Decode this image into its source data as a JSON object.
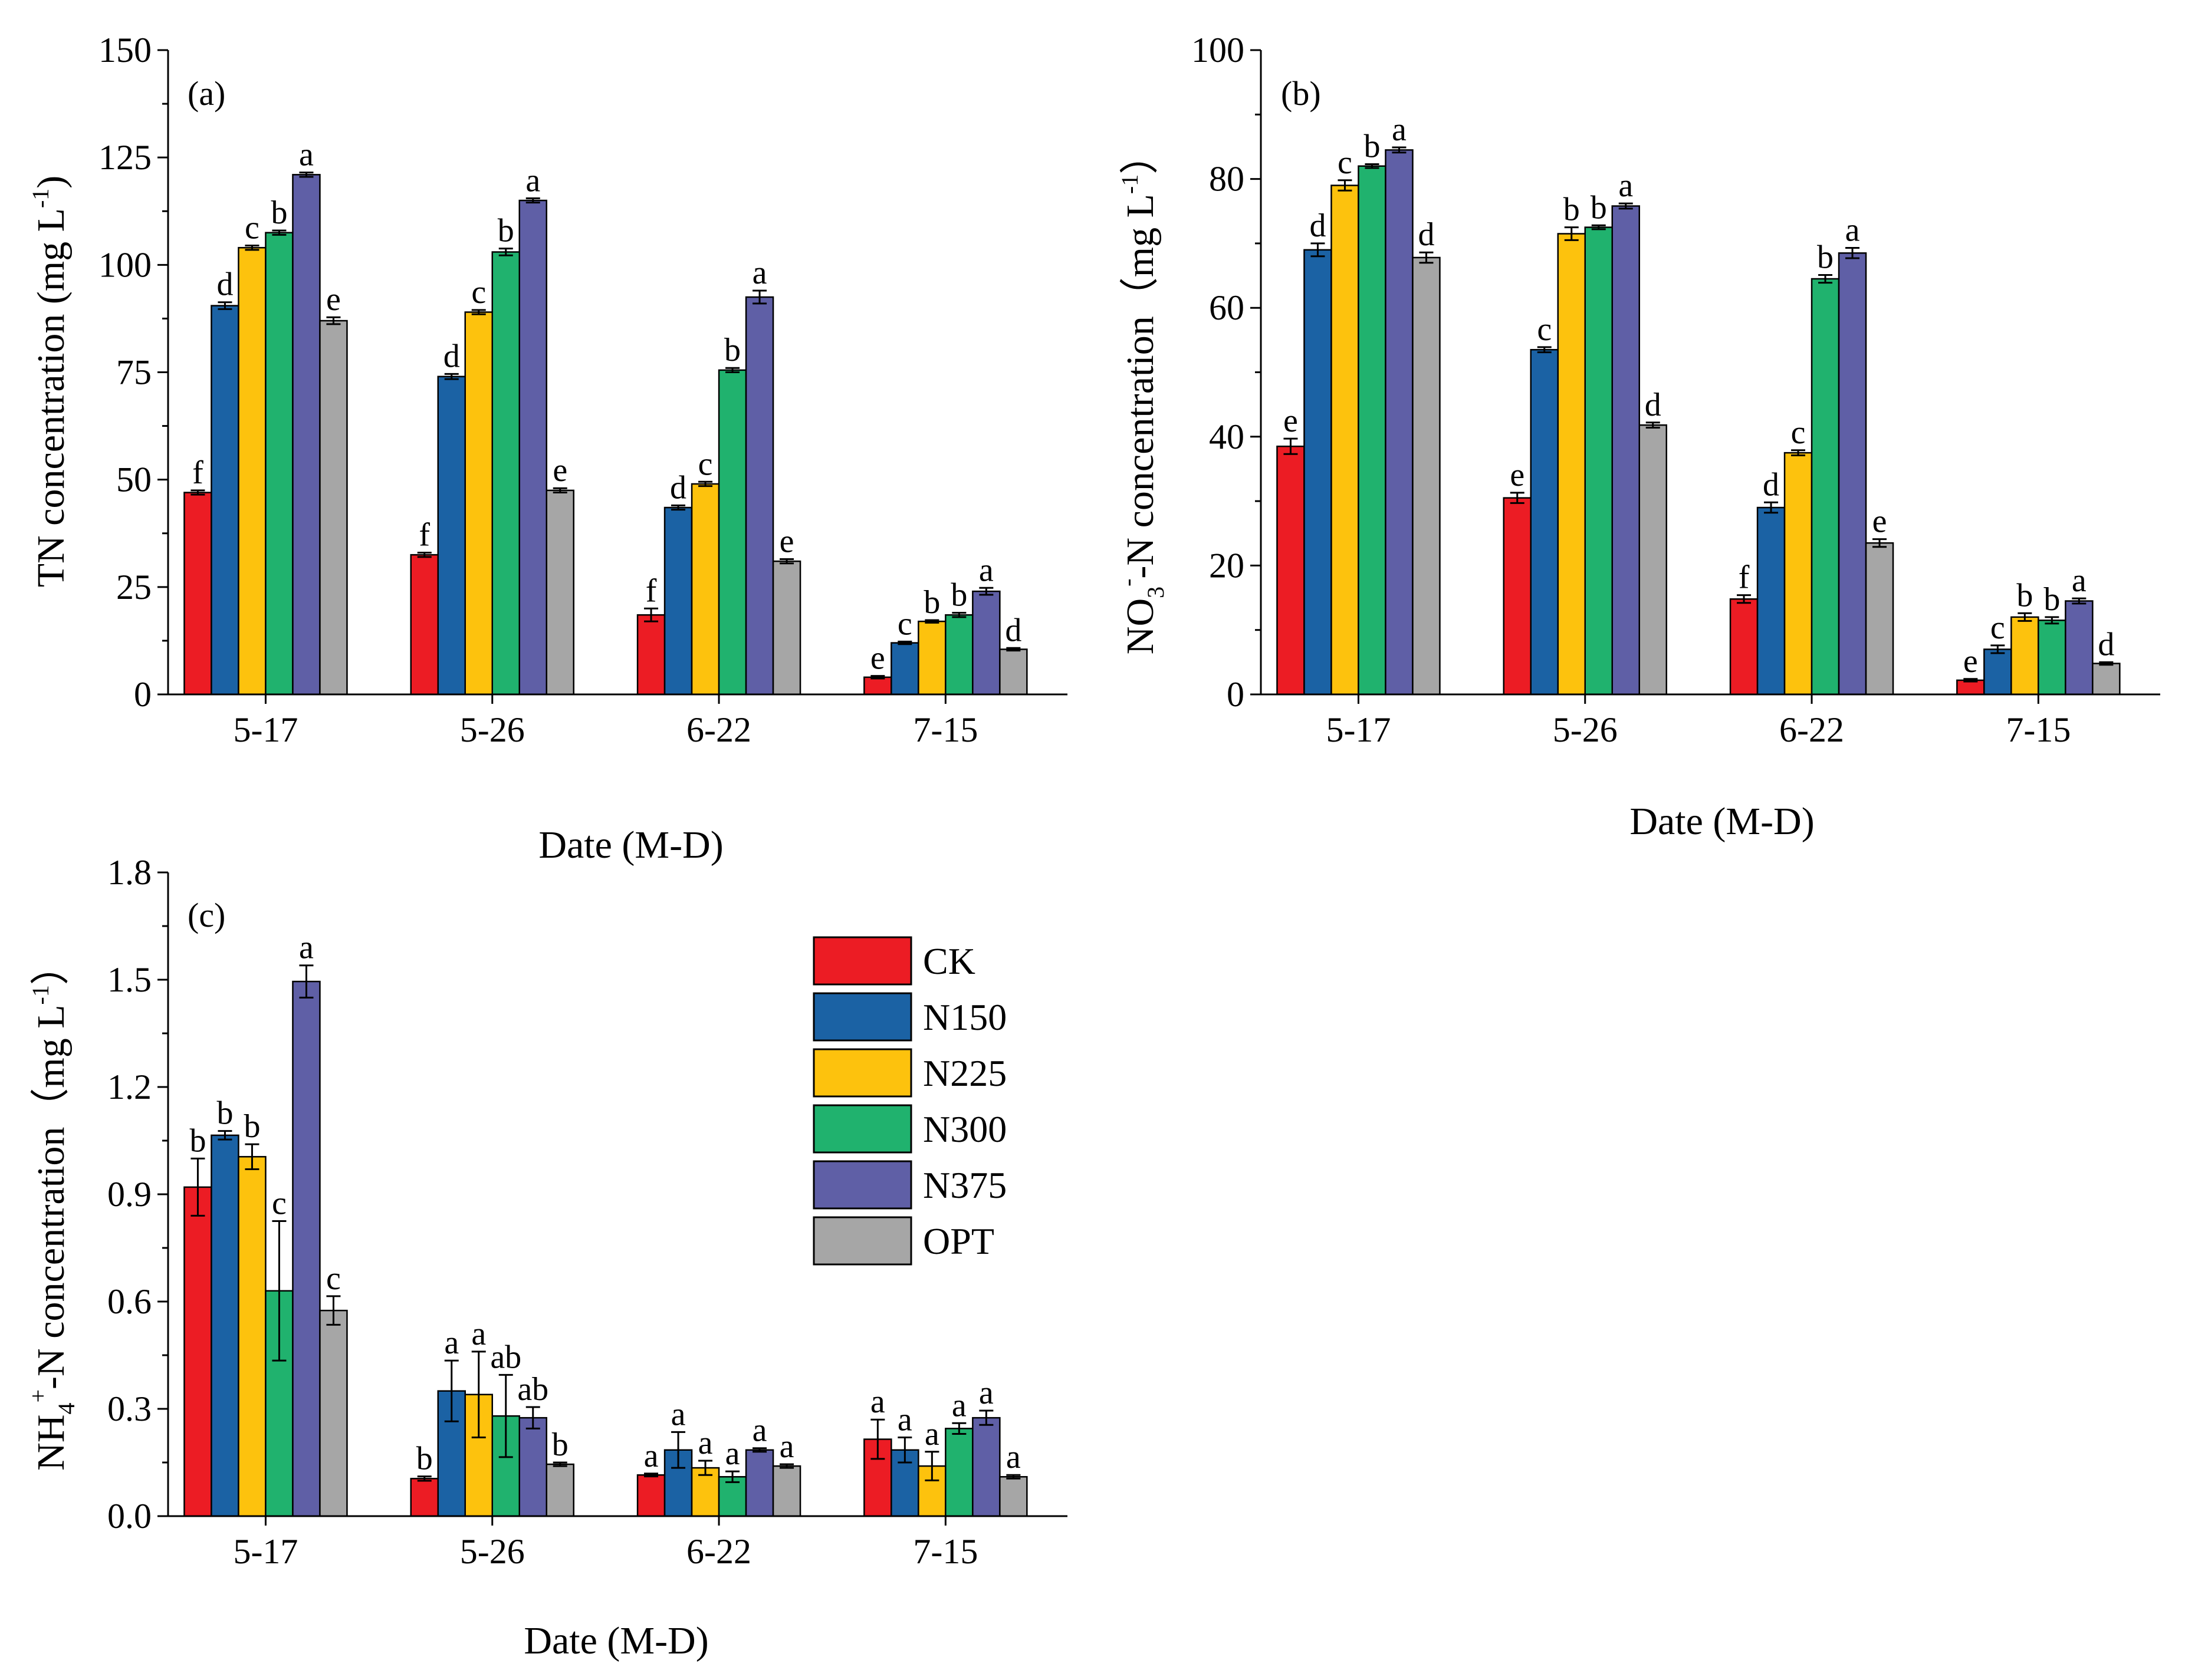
{
  "colors": {
    "CK": "#ec1c24",
    "N150": "#1b62a4",
    "N225": "#fdc20d",
    "N300": "#20b26e",
    "N375": "#5f5fa6",
    "OPT": "#a6a6a6"
  },
  "legend": {
    "entries": [
      "CK",
      "N150",
      "N225",
      "N300",
      "N375",
      "OPT"
    ]
  },
  "chart_data": [
    {
      "type": "bar",
      "panel_label": "(a)",
      "ylabel_main": "TN concentration (mg L",
      "ylabel_sup": "-1",
      "ylabel_close": ")",
      "xlabel": "Date (M-D)",
      "categories": [
        "5-17",
        "5-26",
        "6-22",
        "7-15"
      ],
      "ylim": [
        0,
        150
      ],
      "yticks": [
        "0",
        "25",
        "50",
        "75",
        "100",
        "125",
        "150"
      ],
      "ytick_values": [
        0,
        25,
        50,
        75,
        100,
        125,
        150
      ],
      "series": [
        {
          "name": "CK",
          "values": [
            47,
            32.5,
            18.5,
            4
          ],
          "errors": [
            0.5,
            0.5,
            1.5,
            0.3
          ],
          "letters": [
            "f",
            "f",
            "f",
            "e"
          ]
        },
        {
          "name": "N150",
          "values": [
            90.5,
            74,
            43.5,
            12
          ],
          "errors": [
            0.8,
            0.6,
            0.5,
            0.3
          ],
          "letters": [
            "d",
            "d",
            "d",
            "c"
          ]
        },
        {
          "name": "N225",
          "values": [
            104,
            89,
            49,
            17
          ],
          "errors": [
            0.5,
            0.5,
            0.5,
            0.3
          ],
          "letters": [
            "c",
            "c",
            "c",
            "b"
          ]
        },
        {
          "name": "N300",
          "values": [
            107.5,
            103,
            75.5,
            18.5
          ],
          "errors": [
            0.5,
            0.8,
            0.5,
            0.5
          ],
          "letters": [
            "b",
            "b",
            "b",
            "b"
          ]
        },
        {
          "name": "N375",
          "values": [
            121,
            115,
            92.5,
            24
          ],
          "errors": [
            0.5,
            0.5,
            1.5,
            0.8
          ],
          "letters": [
            "a",
            "a",
            "a",
            "a"
          ]
        },
        {
          "name": "OPT",
          "values": [
            87,
            47.5,
            31,
            10.5
          ],
          "errors": [
            0.8,
            0.5,
            0.5,
            0.3
          ],
          "letters": [
            "e",
            "e",
            "e",
            "d"
          ]
        }
      ]
    },
    {
      "type": "bar",
      "panel_label": "(b)",
      "ylabel_main": "-N concentration（mg L",
      "ylabel_prefix": "NO",
      "ylabel_sub": "3",
      "ylabel_sup_ion": "-",
      "ylabel_sup": "-1",
      "ylabel_close": "）",
      "xlabel": "Date (M-D)",
      "categories": [
        "5-17",
        "5-26",
        "6-22",
        "7-15"
      ],
      "ylim": [
        0,
        100
      ],
      "yticks": [
        "0",
        "20",
        "40",
        "60",
        "80",
        "100"
      ],
      "ytick_values": [
        0,
        20,
        40,
        60,
        80,
        100
      ],
      "series": [
        {
          "name": "CK",
          "values": [
            38.5,
            30.5,
            14.8,
            2.2
          ],
          "errors": [
            1.2,
            0.8,
            0.6,
            0.2
          ],
          "letters": [
            "e",
            "e",
            "f",
            "e"
          ]
        },
        {
          "name": "N150",
          "values": [
            69,
            53.5,
            29,
            7
          ],
          "errors": [
            1,
            0.4,
            0.8,
            0.6
          ],
          "letters": [
            "d",
            "c",
            "d",
            "c"
          ]
        },
        {
          "name": "N225",
          "values": [
            79,
            71.5,
            37.5,
            12
          ],
          "errors": [
            0.8,
            1,
            0.4,
            0.6
          ],
          "letters": [
            "c",
            "b",
            "c",
            "b"
          ]
        },
        {
          "name": "N300",
          "values": [
            82,
            72.5,
            64.5,
            11.5
          ],
          "errors": [
            0.3,
            0.3,
            0.6,
            0.5
          ],
          "letters": [
            "b",
            "b",
            "b",
            "b"
          ]
        },
        {
          "name": "N375",
          "values": [
            84.5,
            75.8,
            68.5,
            14.5
          ],
          "errors": [
            0.4,
            0.4,
            0.8,
            0.4
          ],
          "letters": [
            "a",
            "a",
            "a",
            "a"
          ]
        },
        {
          "name": "OPT",
          "values": [
            67.8,
            41.8,
            23.5,
            4.8
          ],
          "errors": [
            0.8,
            0.4,
            0.6,
            0.2
          ],
          "letters": [
            "d",
            "d",
            "e",
            "d"
          ]
        }
      ]
    },
    {
      "type": "bar",
      "panel_label": "(c)",
      "ylabel_main": "-N concentration（mg L",
      "ylabel_prefix": "NH",
      "ylabel_sub": "4",
      "ylabel_sup_ion": "+",
      "ylabel_sup": "-1",
      "ylabel_close": "）",
      "xlabel": "Date (M-D)",
      "categories": [
        "5-17",
        "5-26",
        "6-22",
        "7-15"
      ],
      "ylim": [
        0,
        1.8
      ],
      "yticks": [
        "0.0",
        "0.3",
        "0.6",
        "0.9",
        "1.2",
        "1.5",
        "1.8"
      ],
      "ytick_values": [
        0,
        0.3,
        0.6,
        0.9,
        1.2,
        1.5,
        1.8
      ],
      "series": [
        {
          "name": "CK",
          "values": [
            0.92,
            0.105,
            0.115,
            0.215
          ],
          "errors": [
            0.08,
            0.006,
            0.004,
            0.055
          ],
          "letters": [
            "b",
            "b",
            "a",
            "a"
          ]
        },
        {
          "name": "N150",
          "values": [
            1.065,
            0.35,
            0.185,
            0.185
          ],
          "errors": [
            0.012,
            0.085,
            0.05,
            0.035
          ],
          "letters": [
            "b",
            "a",
            "a",
            "a"
          ]
        },
        {
          "name": "N225",
          "values": [
            1.005,
            0.34,
            0.135,
            0.14
          ],
          "errors": [
            0.035,
            0.12,
            0.02,
            0.04
          ],
          "letters": [
            "b",
            "a",
            "a",
            "a"
          ]
        },
        {
          "name": "N300",
          "values": [
            0.63,
            0.28,
            0.11,
            0.245
          ],
          "errors": [
            0.195,
            0.115,
            0.015,
            0.015
          ],
          "letters": [
            "c",
            "ab",
            "a",
            "a"
          ]
        },
        {
          "name": "N375",
          "values": [
            1.495,
            0.275,
            0.185,
            0.275
          ],
          "errors": [
            0.045,
            0.03,
            0.005,
            0.02
          ],
          "letters": [
            "a",
            "ab",
            "a",
            "a"
          ]
        },
        {
          "name": "OPT",
          "values": [
            0.575,
            0.145,
            0.14,
            0.11
          ],
          "errors": [
            0.04,
            0.005,
            0.005,
            0.005
          ],
          "letters": [
            "c",
            "b",
            "a",
            "a"
          ]
        }
      ]
    }
  ]
}
